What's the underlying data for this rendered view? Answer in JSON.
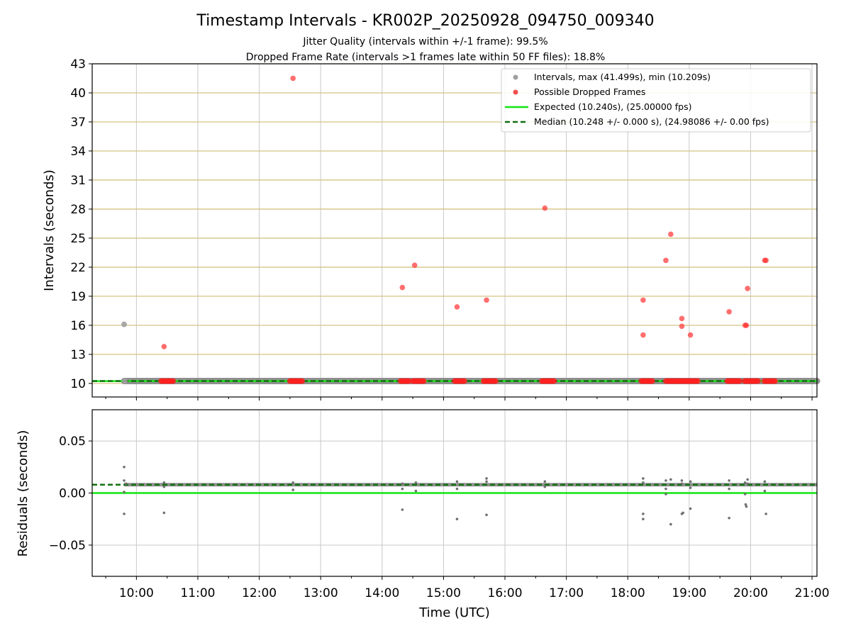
{
  "chart_data": {
    "title": "Timestamp Intervals - KR002P_20250928_094750_009340",
    "subtitle_1": "Jitter Quality (intervals within +/-1 frame): 99.5%",
    "subtitle_2": "Dropped Frame Rate (intervals >1 frames late within 50 FF files): 18.8%",
    "xlabel": "Time (UTC)",
    "x_ticks": [
      "10:00",
      "11:00",
      "12:00",
      "13:00",
      "14:00",
      "15:00",
      "16:00",
      "17:00",
      "18:00",
      "19:00",
      "20:00",
      "21:00"
    ],
    "x_tick_hours": [
      10,
      11,
      12,
      13,
      14,
      15,
      16,
      17,
      18,
      19,
      20,
      21
    ],
    "xlim_hours": [
      9.28,
      21.08
    ],
    "top_panel": {
      "type": "scatter",
      "ylabel": "Intervals (seconds)",
      "ylim": [
        8.6,
        43
      ],
      "y_ticks": [
        10,
        13,
        16,
        19,
        22,
        25,
        28,
        31,
        34,
        37,
        40,
        43
      ],
      "y_tick_labels": [
        "10",
        "13",
        "16",
        "19",
        "22",
        "25",
        "28",
        "31",
        "34",
        "37",
        "40",
        "43"
      ],
      "legend": [
        {
          "label": "Intervals, max (41.499s), min (10.209s)",
          "kind": "dot",
          "color": "#a0a0a0"
        },
        {
          "label": "Possible Dropped Frames",
          "kind": "dot",
          "color": "#f05050"
        },
        {
          "label": "Expected (10.240s), (25.00000 fps)",
          "kind": "solid",
          "color": "#11e611"
        },
        {
          "label": "Median (10.248 +/- 0.000 s), (24.98086 +/- 0.00 fps)",
          "kind": "dashed",
          "color": "#107010"
        }
      ],
      "expected": 10.24,
      "median": 10.248,
      "intervals_series": {
        "name": "Intervals",
        "band_x_range": [
          9.8,
          21.08
        ],
        "band_y": 10.248,
        "points": [
          [
            9.8,
            16.1
          ],
          [
            9.81,
            10.25
          ]
        ]
      },
      "dropped_series": {
        "name": "Possible Dropped Frames",
        "points": [
          [
            10.45,
            13.8
          ],
          [
            12.55,
            41.5
          ],
          [
            14.33,
            19.9
          ],
          [
            14.53,
            22.2
          ],
          [
            15.22,
            17.9
          ],
          [
            15.7,
            18.6
          ],
          [
            16.65,
            28.1
          ],
          [
            18.25,
            18.6
          ],
          [
            18.25,
            15.0
          ],
          [
            18.62,
            22.7
          ],
          [
            18.7,
            25.4
          ],
          [
            18.88,
            16.7
          ],
          [
            18.88,
            15.9
          ],
          [
            19.02,
            15.0
          ],
          [
            19.65,
            17.4
          ],
          [
            19.91,
            16.0
          ],
          [
            19.93,
            16.0
          ],
          [
            19.95,
            19.8
          ],
          [
            20.23,
            22.7
          ],
          [
            20.25,
            22.7
          ]
        ],
        "clusters_at_baseline": [
          [
            10.4,
            10.6
          ],
          [
            12.5,
            12.7
          ],
          [
            14.3,
            14.45
          ],
          [
            14.5,
            14.68
          ],
          [
            15.18,
            15.35
          ],
          [
            15.65,
            15.85
          ],
          [
            16.6,
            16.8
          ],
          [
            18.22,
            18.4
          ],
          [
            18.62,
            19.15
          ],
          [
            19.62,
            19.82
          ],
          [
            19.9,
            20.12
          ],
          [
            20.22,
            20.4
          ]
        ],
        "baseline_value": 10.24
      }
    },
    "bottom_panel": {
      "type": "scatter",
      "ylabel": "Residuals (seconds)",
      "ylim": [
        -0.08,
        0.08
      ],
      "y_ticks": [
        0.05,
        0.0,
        -0.05
      ],
      "y_tick_labels": [
        "0.05",
        "0.00",
        "−0.05"
      ],
      "expected": 0.0,
      "median": 0.008,
      "points": [
        [
          9.8,
          0.025
        ],
        [
          9.8,
          0.012
        ],
        [
          9.8,
          0.001
        ],
        [
          9.8,
          -0.02
        ],
        [
          9.83,
          0.009
        ],
        [
          10.45,
          0.01
        ],
        [
          10.45,
          0.006
        ],
        [
          10.45,
          -0.019
        ],
        [
          12.55,
          0.01
        ],
        [
          12.55,
          0.003
        ],
        [
          14.33,
          0.009
        ],
        [
          14.33,
          0.004
        ],
        [
          14.33,
          -0.016
        ],
        [
          14.55,
          0.01
        ],
        [
          14.55,
          0.002
        ],
        [
          15.22,
          0.011
        ],
        [
          15.22,
          0.004
        ],
        [
          15.22,
          -0.025
        ],
        [
          15.7,
          0.014
        ],
        [
          15.7,
          0.011
        ],
        [
          15.7,
          -0.021
        ],
        [
          16.65,
          0.011
        ],
        [
          16.65,
          0.006
        ],
        [
          18.25,
          0.014
        ],
        [
          18.25,
          0.01
        ],
        [
          18.25,
          -0.02
        ],
        [
          18.25,
          -0.025
        ],
        [
          18.62,
          0.012
        ],
        [
          18.62,
          0.004
        ],
        [
          18.62,
          -0.001
        ],
        [
          18.7,
          0.013
        ],
        [
          18.7,
          -0.03
        ],
        [
          18.88,
          0.012
        ],
        [
          18.88,
          0.009
        ],
        [
          18.88,
          -0.02
        ],
        [
          18.9,
          -0.019
        ],
        [
          19.02,
          0.011
        ],
        [
          19.02,
          0.005
        ],
        [
          19.02,
          -0.015
        ],
        [
          19.65,
          0.012
        ],
        [
          19.65,
          0.004
        ],
        [
          19.65,
          -0.024
        ],
        [
          19.91,
          0.01
        ],
        [
          19.91,
          -0.001
        ],
        [
          19.92,
          -0.011
        ],
        [
          19.93,
          -0.013
        ],
        [
          19.95,
          0.013
        ],
        [
          19.95,
          0.009
        ],
        [
          20.23,
          0.011
        ],
        [
          20.23,
          0.002
        ],
        [
          20.25,
          -0.02
        ]
      ],
      "band_x_range": [
        9.8,
        21.08
      ],
      "band_y": 0.008
    }
  }
}
